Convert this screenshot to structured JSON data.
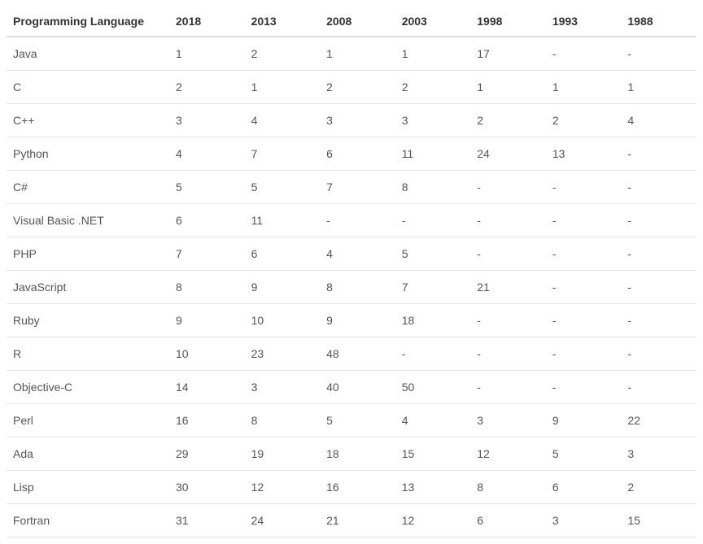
{
  "table": {
    "columns": [
      "Programming Language",
      "2018",
      "2013",
      "2008",
      "2003",
      "1998",
      "1993",
      "1988"
    ],
    "rows": [
      [
        "Java",
        "1",
        "2",
        "1",
        "1",
        "17",
        "-",
        "-"
      ],
      [
        "C",
        "2",
        "1",
        "2",
        "2",
        "1",
        "1",
        "1"
      ],
      [
        "C++",
        "3",
        "4",
        "3",
        "3",
        "2",
        "2",
        "4"
      ],
      [
        "Python",
        "4",
        "7",
        "6",
        "11",
        "24",
        "13",
        "-"
      ],
      [
        "C#",
        "5",
        "5",
        "7",
        "8",
        "-",
        "-",
        "-"
      ],
      [
        "Visual Basic .NET",
        "6",
        "11",
        "-",
        "-",
        "-",
        "-",
        "-"
      ],
      [
        "PHP",
        "7",
        "6",
        "4",
        "5",
        "-",
        "-",
        "-"
      ],
      [
        "JavaScript",
        "8",
        "9",
        "8",
        "7",
        "21",
        "-",
        "-"
      ],
      [
        "Ruby",
        "9",
        "10",
        "9",
        "18",
        "-",
        "-",
        "-"
      ],
      [
        "R",
        "10",
        "23",
        "48",
        "-",
        "-",
        "-",
        "-"
      ],
      [
        "Objective-C",
        "14",
        "3",
        "40",
        "50",
        "-",
        "-",
        "-"
      ],
      [
        "Perl",
        "16",
        "8",
        "5",
        "4",
        "3",
        "9",
        "22"
      ],
      [
        "Ada",
        "29",
        "19",
        "18",
        "15",
        "12",
        "5",
        "3"
      ],
      [
        "Lisp",
        "30",
        "12",
        "16",
        "13",
        "8",
        "6",
        "2"
      ],
      [
        "Fortran",
        "31",
        "24",
        "21",
        "12",
        "6",
        "3",
        "15"
      ]
    ]
  }
}
